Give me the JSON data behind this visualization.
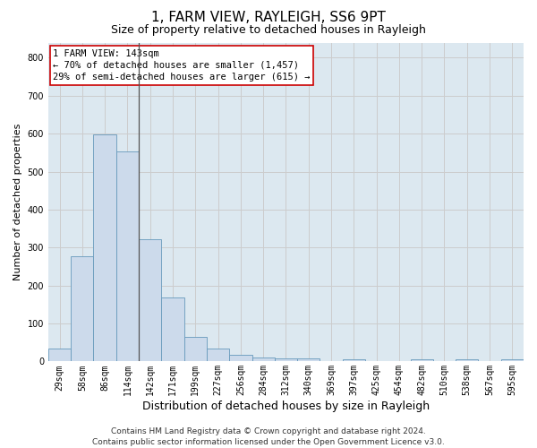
{
  "title": "1, FARM VIEW, RAYLEIGH, SS6 9PT",
  "subtitle": "Size of property relative to detached houses in Rayleigh",
  "xlabel": "Distribution of detached houses by size in Rayleigh",
  "ylabel": "Number of detached properties",
  "categories": [
    "29sqm",
    "58sqm",
    "86sqm",
    "114sqm",
    "142sqm",
    "171sqm",
    "199sqm",
    "227sqm",
    "256sqm",
    "284sqm",
    "312sqm",
    "340sqm",
    "369sqm",
    "397sqm",
    "425sqm",
    "454sqm",
    "482sqm",
    "510sqm",
    "538sqm",
    "567sqm",
    "595sqm"
  ],
  "values": [
    35,
    278,
    597,
    553,
    322,
    168,
    65,
    33,
    18,
    10,
    8,
    8,
    0,
    5,
    0,
    0,
    5,
    0,
    5,
    0,
    5
  ],
  "bar_color": "#ccdaeb",
  "bar_edge_color": "#6699bb",
  "highlight_index": 4,
  "highlight_line_color": "#555555",
  "annotation_text": "1 FARM VIEW: 143sqm\n← 70% of detached houses are smaller (1,457)\n29% of semi-detached houses are larger (615) →",
  "annotation_box_color": "#ffffff",
  "annotation_box_edge_color": "#cc0000",
  "ylim": [
    0,
    840
  ],
  "yticks": [
    0,
    100,
    200,
    300,
    400,
    500,
    600,
    700,
    800
  ],
  "grid_color": "#cccccc",
  "plot_bg_color": "#dce8f0",
  "footer_text": "Contains HM Land Registry data © Crown copyright and database right 2024.\nContains public sector information licensed under the Open Government Licence v3.0.",
  "title_fontsize": 11,
  "subtitle_fontsize": 9,
  "xlabel_fontsize": 9,
  "ylabel_fontsize": 8,
  "tick_fontsize": 7,
  "annotation_fontsize": 7.5,
  "footer_fontsize": 6.5
}
